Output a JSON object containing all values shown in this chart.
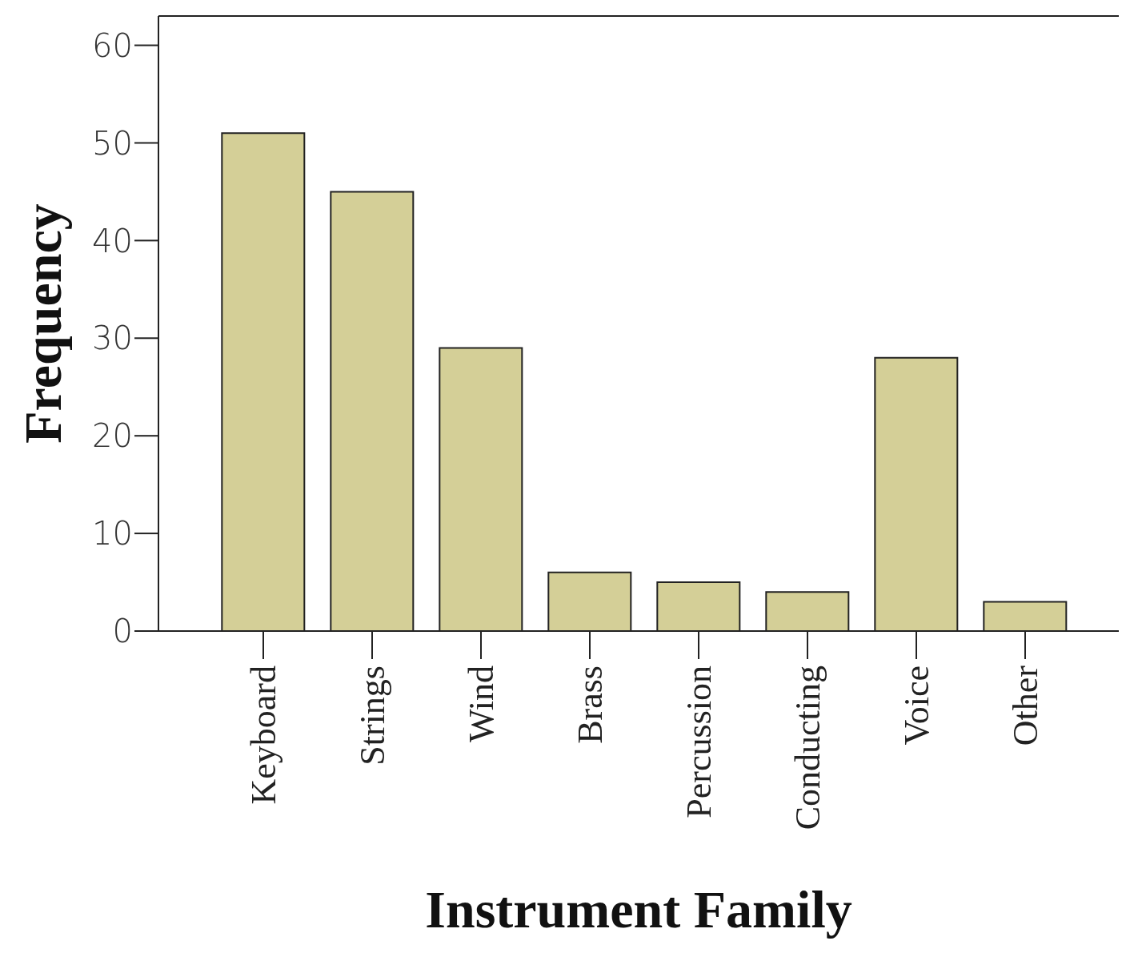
{
  "chart_data": {
    "type": "bar",
    "xlabel": "Instrument Family",
    "ylabel": "Frequency",
    "categories": [
      "Keyboard",
      "Strings",
      "Wind",
      "Brass",
      "Percussion",
      "Conducting",
      "Voice",
      "Other"
    ],
    "values": [
      51,
      45,
      29,
      6,
      5,
      4,
      28,
      3
    ],
    "color": "#d4cf97",
    "ylim": [
      0,
      63
    ],
    "yticks": [
      0,
      10,
      20,
      30,
      40,
      50,
      60
    ],
    "grid": false,
    "legend": false
  }
}
